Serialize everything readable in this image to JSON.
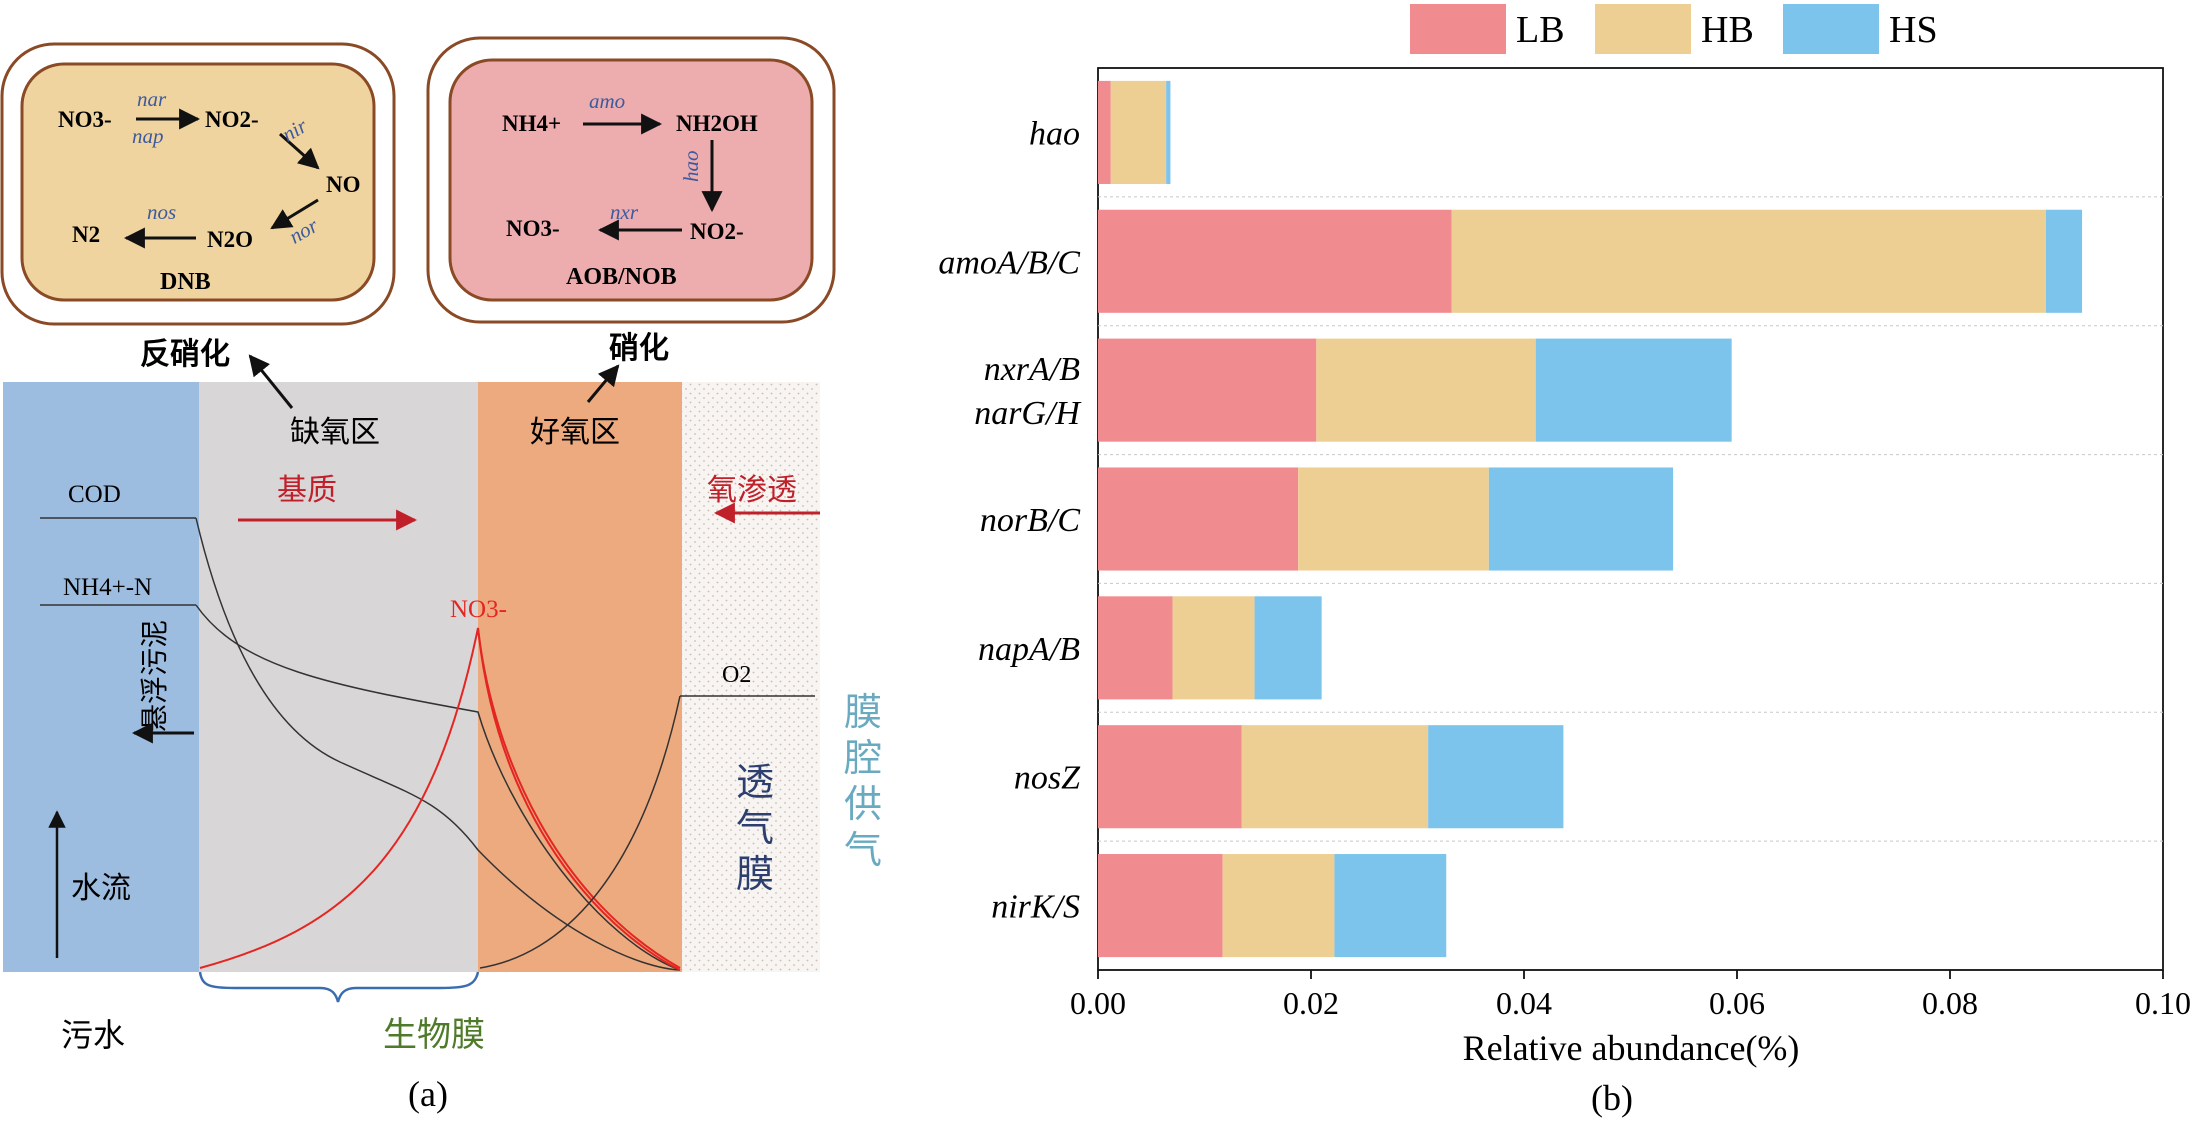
{
  "panel_a": {
    "denitrification_box": {
      "no3": "NO3-",
      "no2": "NO2-",
      "no": "NO",
      "n2o": "N2O",
      "n2": "N2",
      "enzyme_nar": "nar",
      "enzyme_nap": "nap",
      "enzyme_nir": "nir",
      "enzyme_nor": "nor",
      "enzyme_nos": "nos",
      "label": "DNB"
    },
    "nitrification_box": {
      "nh4": "NH4+",
      "nh2oh": "NH2OH",
      "no2": "NO2-",
      "no3": "NO3-",
      "enzyme_amo": "amo",
      "enzyme_hao": "hao",
      "enzyme_nxr": "nxr",
      "label": "AOB/NOB"
    },
    "denitrification_title": "反硝化",
    "nitrification_title": "硝化",
    "anoxic_zone": "缺氧区",
    "aerobic_zone": "好氧区",
    "substrate": "基质",
    "oxygen_permeation": "氧渗透",
    "cod": "COD",
    "nh4n": "NH4+-N",
    "no3_curve": "NO3-",
    "o2": "O2",
    "suspended_sludge": "悬浮污泥",
    "water_flow": "水流",
    "gas_membrane": "透气膜",
    "lumen_supply": "膜腔供气",
    "sewage": "污水",
    "biofilm": "生物膜",
    "caption": "(a)",
    "colors": {
      "bulk": "#9dbde0",
      "anoxic": "#d9d6d7",
      "aerobic": "#eeaa7f",
      "dnb_fill": "#f0d49f",
      "aob_fill": "#edacae",
      "box_border": "#8a4a25",
      "red": "#c0202a",
      "biofilm_text": "#4f7a2a",
      "membrane_text": "#2d3f6e",
      "lumen_text": "#6aaac0"
    }
  },
  "chart_data": {
    "type": "bar",
    "orientation": "horizontal",
    "stacked": true,
    "categories": [
      "hao",
      "amoA/B/C",
      "nxrA/B narG/H",
      "norB/C",
      "napA/B",
      "nosZ",
      "nirK/S"
    ],
    "category_lines": [
      [
        "hao"
      ],
      [
        "amoA/B/C"
      ],
      [
        "nxrA/B",
        "narG/H"
      ],
      [
        "norB/C"
      ],
      [
        "napA/B"
      ],
      [
        "nosZ"
      ],
      [
        "nirK/S"
      ]
    ],
    "series": [
      {
        "name": "LB",
        "color": "#f08c8f",
        "values": [
          0.0012,
          0.0332,
          0.0205,
          0.0188,
          0.007,
          0.0135,
          0.0117
        ]
      },
      {
        "name": "HB",
        "color": "#edcf93",
        "values": [
          0.0052,
          0.0558,
          0.0206,
          0.0179,
          0.0077,
          0.0175,
          0.0105
        ]
      },
      {
        "name": "HS",
        "color": "#7dc4ec",
        "values": [
          0.0004,
          0.0034,
          0.0184,
          0.0173,
          0.0063,
          0.0127,
          0.0105
        ]
      }
    ],
    "xlim": [
      0,
      0.1
    ],
    "xticks": [
      "0.00",
      "0.02",
      "0.04",
      "0.06",
      "0.08",
      "0.10"
    ],
    "xlabel": "Relative abundance(%)",
    "legend_position": "top",
    "caption": "(b)"
  }
}
